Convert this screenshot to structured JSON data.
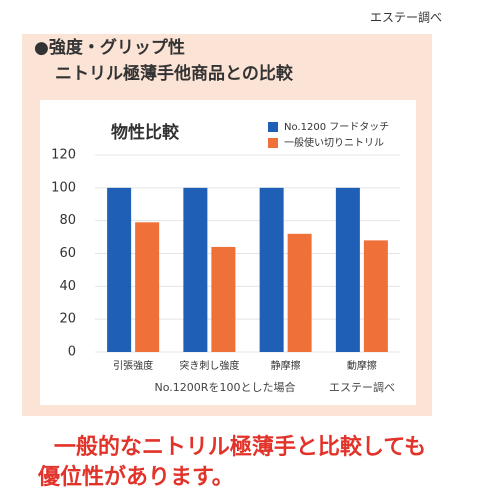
{
  "header": {
    "source": "エステー調べ",
    "heading": [
      "●強度・グリップ性",
      "ニトリル極薄手他商品との比較"
    ]
  },
  "chart_data": {
    "type": "bar",
    "title": "物性比較",
    "categories": [
      "引張強度",
      "突き刺し強度",
      "静摩擦",
      "動摩擦"
    ],
    "series": [
      {
        "name": "No.1200 フードタッチ",
        "color": "#1f5fb5",
        "values": [
          100,
          100,
          100,
          100
        ]
      },
      {
        "name": "一般使い切りニトリル",
        "color": "#f0703a",
        "values": [
          79,
          64,
          72,
          68
        ]
      }
    ],
    "ylim": [
      0,
      120
    ],
    "yticks": [
      0,
      20,
      40,
      60,
      80,
      100,
      120
    ],
    "grid": true,
    "notes": [
      "No.1200Rを100とした場合",
      "エステー調べ"
    ]
  },
  "footer": {
    "message": [
      "一般的なニトリル極薄手と比較しても",
      "優位性があります。"
    ]
  }
}
